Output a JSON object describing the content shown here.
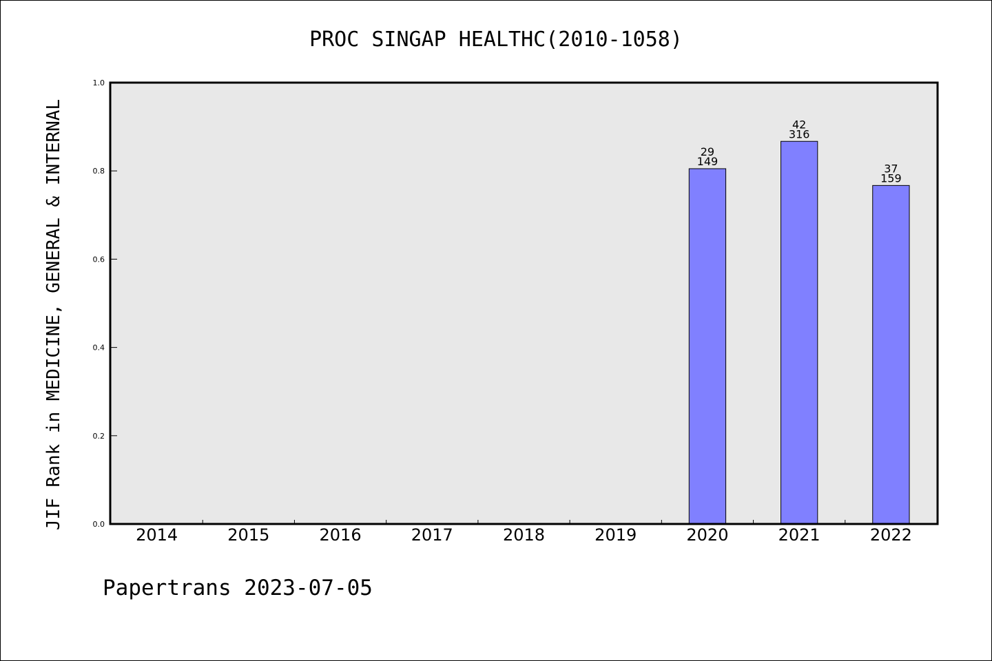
{
  "chart_data": {
    "type": "bar",
    "title": "PROC SINGAP HEALTHC(2010-1058)",
    "ylabel": "JIF Rank in MEDICINE, GENERAL & INTERNAL",
    "xlabel": "",
    "categories": [
      "2014",
      "2015",
      "2016",
      "2017",
      "2018",
      "2019",
      "2020",
      "2021",
      "2022"
    ],
    "values": [
      null,
      null,
      null,
      null,
      null,
      null,
      0.805,
      0.867,
      0.767
    ],
    "bar_labels": [
      null,
      null,
      null,
      null,
      null,
      null,
      {
        "rank": "29",
        "total": "149"
      },
      {
        "rank": "42",
        "total": "316"
      },
      {
        "rank": "37",
        "total": "159"
      }
    ],
    "ylim": [
      0.0,
      1.0
    ],
    "yticks": [
      "0.0",
      "0.2",
      "0.4",
      "0.6",
      "0.8",
      "1.0"
    ],
    "grid": false,
    "colors": {
      "bar_fill": "#8080ff",
      "bar_stroke": "#000000",
      "plot_background": "#e8e8e8",
      "axis": "#000000"
    }
  },
  "footer": {
    "text": "Papertrans 2023-07-05"
  }
}
